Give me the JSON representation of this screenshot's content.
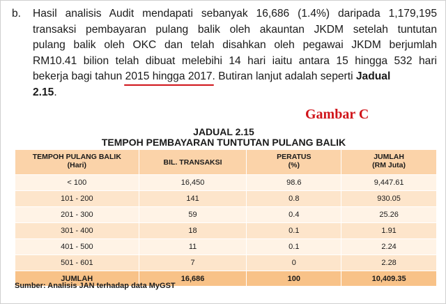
{
  "paragraph": {
    "marker": "b.",
    "lines": [
      "Hasil analisis Audit mendapati sebanyak 16,686 (1.4%) daripada 1,179,195",
      "transaksi pembayaran pulang balik oleh akauntan JKDM setelah tuntutan",
      "pulang balik oleh OKC dan telah disahkan oleh pegawai JKDM berjumlah",
      "RM10.41 bilion telah dibuat melebihi 14 hari iaitu antara 15 hingga 532 hari"
    ],
    "line5_before": "bekerja bagi tahun",
    "line5_highlight": "2015 hingga 2017",
    "line5_after": ". Butiran lanjut adalah seperti",
    "line5_bold": "Jadual",
    "line6_bold": "2.15",
    "line6_after": "."
  },
  "annotation": "Gambar C",
  "table": {
    "title": "JADUAL 2.15",
    "subtitle": "TEMPOH PEMBAYARAN TUNTUTAN PULANG BALIK",
    "headers": [
      {
        "line1": "TEMPOH PULANG BALIK",
        "line2": "(Hari)"
      },
      {
        "line1": "BIL. TRANSAKSI",
        "line2": ""
      },
      {
        "line1": "PERATUS",
        "line2": "(%)"
      },
      {
        "line1": "JUMLAH",
        "line2": "(RM Juta)"
      }
    ],
    "rows": [
      [
        "< 100",
        "16,450",
        "98.6",
        "9,447.61"
      ],
      [
        "101 - 200",
        "141",
        "0.8",
        "930.05"
      ],
      [
        "201 - 300",
        "59",
        "0.4",
        "25.26"
      ],
      [
        "301 - 400",
        "18",
        "0.1",
        "1.91"
      ],
      [
        "401 - 500",
        "11",
        "0.1",
        "2.24"
      ],
      [
        "501 - 601",
        "7",
        "0",
        "2.28"
      ]
    ],
    "total": [
      "JUMLAH",
      "16,686",
      "100",
      "10,409.35"
    ]
  },
  "source": "Sumber: Analisis JAN terhadap data MyGST"
}
